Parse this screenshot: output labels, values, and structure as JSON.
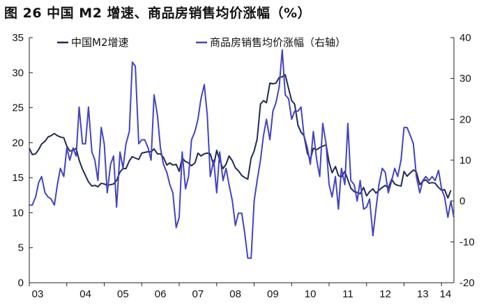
{
  "title": "图 26 中国 M2 增速、商品房销售均价涨幅（%）",
  "chart_data": {
    "type": "line",
    "title": "图 26 中国 M2 增速、商品房销售均价涨幅（%）",
    "xlabel": "",
    "ylabel_left": "",
    "ylabel_right": "",
    "x_tick_labels": [
      "03",
      "04",
      "05",
      "06",
      "07",
      "08",
      "09",
      "10",
      "11",
      "12",
      "13",
      "14"
    ],
    "x_range": [
      2003.0,
      2014.33
    ],
    "ylim_left": [
      0,
      35
    ],
    "ylim_right": [
      -20,
      40
    ],
    "y_ticks_left": [
      0,
      5,
      10,
      15,
      20,
      25,
      30,
      35
    ],
    "y_ticks_right": [
      -20,
      -10,
      0,
      10,
      20,
      30,
      40
    ],
    "legend_position": "top",
    "grid": false,
    "series": [
      {
        "name": "中国M2增速",
        "axis": "left",
        "color": "#1f2a52",
        "points": [
          [
            2003.0,
            19.2
          ],
          [
            2003.08,
            18.3
          ],
          [
            2003.17,
            18.4
          ],
          [
            2003.25,
            19.0
          ],
          [
            2003.33,
            19.8
          ],
          [
            2003.42,
            20.2
          ],
          [
            2003.5,
            20.8
          ],
          [
            2003.58,
            21.0
          ],
          [
            2003.67,
            21.3
          ],
          [
            2003.75,
            21.0
          ],
          [
            2003.83,
            20.8
          ],
          [
            2003.92,
            20.7
          ],
          [
            2004.0,
            19.5
          ],
          [
            2004.08,
            18.8
          ],
          [
            2004.17,
            18.9
          ],
          [
            2004.25,
            19.2
          ],
          [
            2004.33,
            17.5
          ],
          [
            2004.42,
            16.2
          ],
          [
            2004.5,
            15.3
          ],
          [
            2004.58,
            14.4
          ],
          [
            2004.67,
            13.8
          ],
          [
            2004.75,
            13.9
          ],
          [
            2004.83,
            13.7
          ],
          [
            2004.92,
            14.2
          ],
          [
            2005.0,
            14.1
          ],
          [
            2005.08,
            13.9
          ],
          [
            2005.17,
            14.0
          ],
          [
            2005.25,
            14.1
          ],
          [
            2005.33,
            14.6
          ],
          [
            2005.42,
            15.8
          ],
          [
            2005.5,
            16.3
          ],
          [
            2005.58,
            16.3
          ],
          [
            2005.67,
            17.4
          ],
          [
            2005.75,
            18.0
          ],
          [
            2005.83,
            17.8
          ],
          [
            2005.92,
            17.6
          ],
          [
            2006.0,
            18.5
          ],
          [
            2006.08,
            18.6
          ],
          [
            2006.17,
            18.7
          ],
          [
            2006.25,
            18.7
          ],
          [
            2006.33,
            19.1
          ],
          [
            2006.42,
            18.4
          ],
          [
            2006.5,
            18.4
          ],
          [
            2006.58,
            17.9
          ],
          [
            2006.67,
            16.8
          ],
          [
            2006.75,
            17.1
          ],
          [
            2006.83,
            16.8
          ],
          [
            2006.92,
            16.9
          ],
          [
            2007.0,
            15.9
          ],
          [
            2007.08,
            17.8
          ],
          [
            2007.17,
            17.3
          ],
          [
            2007.25,
            17.1
          ],
          [
            2007.33,
            16.7
          ],
          [
            2007.42,
            17.1
          ],
          [
            2007.5,
            18.5
          ],
          [
            2007.58,
            18.1
          ],
          [
            2007.67,
            18.4
          ],
          [
            2007.75,
            18.5
          ],
          [
            2007.83,
            18.4
          ],
          [
            2007.92,
            16.7
          ],
          [
            2008.0,
            18.9
          ],
          [
            2008.08,
            17.5
          ],
          [
            2008.17,
            16.3
          ],
          [
            2008.25,
            16.9
          ],
          [
            2008.33,
            18.1
          ],
          [
            2008.42,
            17.4
          ],
          [
            2008.5,
            16.4
          ],
          [
            2008.58,
            16.0
          ],
          [
            2008.67,
            15.3
          ],
          [
            2008.75,
            15.0
          ],
          [
            2008.83,
            14.8
          ],
          [
            2008.92,
            17.8
          ],
          [
            2009.0,
            18.8
          ],
          [
            2009.08,
            20.5
          ],
          [
            2009.17,
            25.5
          ],
          [
            2009.25,
            26.0
          ],
          [
            2009.33,
            25.7
          ],
          [
            2009.42,
            28.5
          ],
          [
            2009.5,
            28.4
          ],
          [
            2009.58,
            28.5
          ],
          [
            2009.67,
            29.3
          ],
          [
            2009.75,
            29.4
          ],
          [
            2009.83,
            29.7
          ],
          [
            2009.92,
            27.7
          ],
          [
            2010.0,
            26.0
          ],
          [
            2010.08,
            25.5
          ],
          [
            2010.17,
            22.5
          ],
          [
            2010.25,
            21.5
          ],
          [
            2010.33,
            21.0
          ],
          [
            2010.42,
            18.5
          ],
          [
            2010.5,
            17.6
          ],
          [
            2010.58,
            19.2
          ],
          [
            2010.67,
            19.0
          ],
          [
            2010.75,
            19.3
          ],
          [
            2010.83,
            19.5
          ],
          [
            2010.92,
            19.7
          ],
          [
            2011.0,
            17.2
          ],
          [
            2011.08,
            15.7
          ],
          [
            2011.17,
            16.6
          ],
          [
            2011.25,
            15.3
          ],
          [
            2011.33,
            15.1
          ],
          [
            2011.42,
            15.9
          ],
          [
            2011.5,
            14.7
          ],
          [
            2011.58,
            13.5
          ],
          [
            2011.67,
            13.0
          ],
          [
            2011.75,
            12.9
          ],
          [
            2011.83,
            12.7
          ],
          [
            2011.92,
            13.6
          ],
          [
            2012.0,
            12.4
          ],
          [
            2012.08,
            13.0
          ],
          [
            2012.17,
            13.4
          ],
          [
            2012.25,
            12.8
          ],
          [
            2012.33,
            13.2
          ],
          [
            2012.42,
            13.6
          ],
          [
            2012.5,
            13.9
          ],
          [
            2012.58,
            13.5
          ],
          [
            2012.67,
            14.8
          ],
          [
            2012.75,
            14.1
          ],
          [
            2012.83,
            13.9
          ],
          [
            2012.92,
            13.8
          ],
          [
            2013.0,
            15.9
          ],
          [
            2013.08,
            15.2
          ],
          [
            2013.17,
            15.7
          ],
          [
            2013.25,
            16.1
          ],
          [
            2013.33,
            15.8
          ],
          [
            2013.42,
            14.0
          ],
          [
            2013.5,
            14.5
          ],
          [
            2013.58,
            14.7
          ],
          [
            2013.67,
            14.2
          ],
          [
            2013.75,
            14.3
          ],
          [
            2013.83,
            14.2
          ],
          [
            2013.92,
            13.6
          ],
          [
            2014.0,
            13.2
          ],
          [
            2014.08,
            13.3
          ],
          [
            2014.17,
            12.1
          ],
          [
            2014.25,
            13.2
          ]
        ]
      },
      {
        "name": "商品房销售均价涨幅（右轴）",
        "axis": "right",
        "color": "#4343c4",
        "points": [
          [
            2003.0,
            -1.0
          ],
          [
            2003.08,
            -1.0
          ],
          [
            2003.17,
            1.0
          ],
          [
            2003.25,
            4.5
          ],
          [
            2003.33,
            6.0
          ],
          [
            2003.42,
            2.0
          ],
          [
            2003.5,
            1.0
          ],
          [
            2003.58,
            0.5
          ],
          [
            2003.67,
            -1.0
          ],
          [
            2003.75,
            4.0
          ],
          [
            2003.83,
            8.0
          ],
          [
            2003.92,
            6.0
          ],
          [
            2004.0,
            13.0
          ],
          [
            2004.08,
            10.0
          ],
          [
            2004.17,
            13.0
          ],
          [
            2004.25,
            11.0
          ],
          [
            2004.33,
            23.0
          ],
          [
            2004.42,
            14.0
          ],
          [
            2004.5,
            14.0
          ],
          [
            2004.58,
            23.0
          ],
          [
            2004.67,
            12.0
          ],
          [
            2004.75,
            10.0
          ],
          [
            2004.83,
            5.0
          ],
          [
            2004.92,
            18.0
          ],
          [
            2005.0,
            14.0
          ],
          [
            2005.08,
            2.0
          ],
          [
            2005.17,
            9.0
          ],
          [
            2005.25,
            11.0
          ],
          [
            2005.33,
            -1.5
          ],
          [
            2005.42,
            12.0
          ],
          [
            2005.5,
            8.0
          ],
          [
            2005.58,
            14.0
          ],
          [
            2005.67,
            17.0
          ],
          [
            2005.75,
            34.0
          ],
          [
            2005.83,
            33.0
          ],
          [
            2005.92,
            14.0
          ],
          [
            2006.0,
            15.0
          ],
          [
            2006.08,
            15.0
          ],
          [
            2006.17,
            13.0
          ],
          [
            2006.25,
            10.0
          ],
          [
            2006.33,
            26.0
          ],
          [
            2006.42,
            21.0
          ],
          [
            2006.5,
            13.0
          ],
          [
            2006.58,
            9.0
          ],
          [
            2006.67,
            7.0
          ],
          [
            2006.75,
            4.0
          ],
          [
            2006.83,
            2.0
          ],
          [
            2006.92,
            -6.5
          ],
          [
            2007.0,
            -4.0
          ],
          [
            2007.08,
            12.0
          ],
          [
            2007.17,
            3.0
          ],
          [
            2007.25,
            6.0
          ],
          [
            2007.33,
            15.0
          ],
          [
            2007.42,
            17.0
          ],
          [
            2007.5,
            20.0
          ],
          [
            2007.58,
            25.0
          ],
          [
            2007.67,
            28.5
          ],
          [
            2007.75,
            21.0
          ],
          [
            2007.83,
            6.0
          ],
          [
            2007.92,
            10.0
          ],
          [
            2008.0,
            2.0
          ],
          [
            2008.08,
            12.0
          ],
          [
            2008.17,
            5.0
          ],
          [
            2008.25,
            8.0
          ],
          [
            2008.33,
            4.0
          ],
          [
            2008.42,
            0.0
          ],
          [
            2008.5,
            -6.0
          ],
          [
            2008.58,
            -3.0
          ],
          [
            2008.67,
            -3.0
          ],
          [
            2008.75,
            -8.0
          ],
          [
            2008.83,
            -14.0
          ],
          [
            2008.92,
            -14.0
          ],
          [
            2009.0,
            0.0
          ],
          [
            2009.08,
            5.0
          ],
          [
            2009.17,
            10.0
          ],
          [
            2009.25,
            16.0
          ],
          [
            2009.33,
            20.0
          ],
          [
            2009.42,
            15.0
          ],
          [
            2009.5,
            22.0
          ],
          [
            2009.58,
            24.0
          ],
          [
            2009.67,
            28.0
          ],
          [
            2009.75,
            37.0
          ],
          [
            2009.83,
            26.0
          ],
          [
            2009.92,
            25.0
          ],
          [
            2010.0,
            20.0
          ],
          [
            2010.08,
            22.0
          ],
          [
            2010.17,
            22.0
          ],
          [
            2010.25,
            23.0
          ],
          [
            2010.33,
            16.0
          ],
          [
            2010.42,
            13.0
          ],
          [
            2010.5,
            9.0
          ],
          [
            2010.58,
            17.0
          ],
          [
            2010.67,
            10.0
          ],
          [
            2010.75,
            6.0
          ],
          [
            2010.83,
            19.0
          ],
          [
            2010.92,
            14.0
          ],
          [
            2011.0,
            4.0
          ],
          [
            2011.08,
            1.0
          ],
          [
            2011.17,
            6.0
          ],
          [
            2011.25,
            -2.0
          ],
          [
            2011.33,
            8.0
          ],
          [
            2011.42,
            4.0
          ],
          [
            2011.5,
            19.0
          ],
          [
            2011.58,
            5.0
          ],
          [
            2011.67,
            4.0
          ],
          [
            2011.75,
            0.0
          ],
          [
            2011.83,
            5.0
          ],
          [
            2011.92,
            -2.0
          ],
          [
            2012.0,
            -1.5
          ],
          [
            2012.08,
            0.5
          ],
          [
            2012.17,
            -8.5
          ],
          [
            2012.25,
            -2.0
          ],
          [
            2012.33,
            4.0
          ],
          [
            2012.42,
            8.0
          ],
          [
            2012.5,
            7.0
          ],
          [
            2012.58,
            2.0
          ],
          [
            2012.67,
            5.0
          ],
          [
            2012.75,
            8.0
          ],
          [
            2012.83,
            6.0
          ],
          [
            2012.92,
            10.0
          ],
          [
            2013.0,
            18.0
          ],
          [
            2013.08,
            18.0
          ],
          [
            2013.17,
            16.0
          ],
          [
            2013.25,
            14.0
          ],
          [
            2013.33,
            6.0
          ],
          [
            2013.42,
            2.0
          ],
          [
            2013.5,
            5.0
          ],
          [
            2013.58,
            6.0
          ],
          [
            2013.67,
            5.0
          ],
          [
            2013.75,
            6.0
          ],
          [
            2013.83,
            5.0
          ],
          [
            2013.92,
            7.5
          ],
          [
            2014.0,
            3.0
          ],
          [
            2014.08,
            1.0
          ],
          [
            2014.17,
            -4.0
          ],
          [
            2014.25,
            0.0
          ],
          [
            2014.33,
            -4.0
          ]
        ]
      }
    ]
  }
}
